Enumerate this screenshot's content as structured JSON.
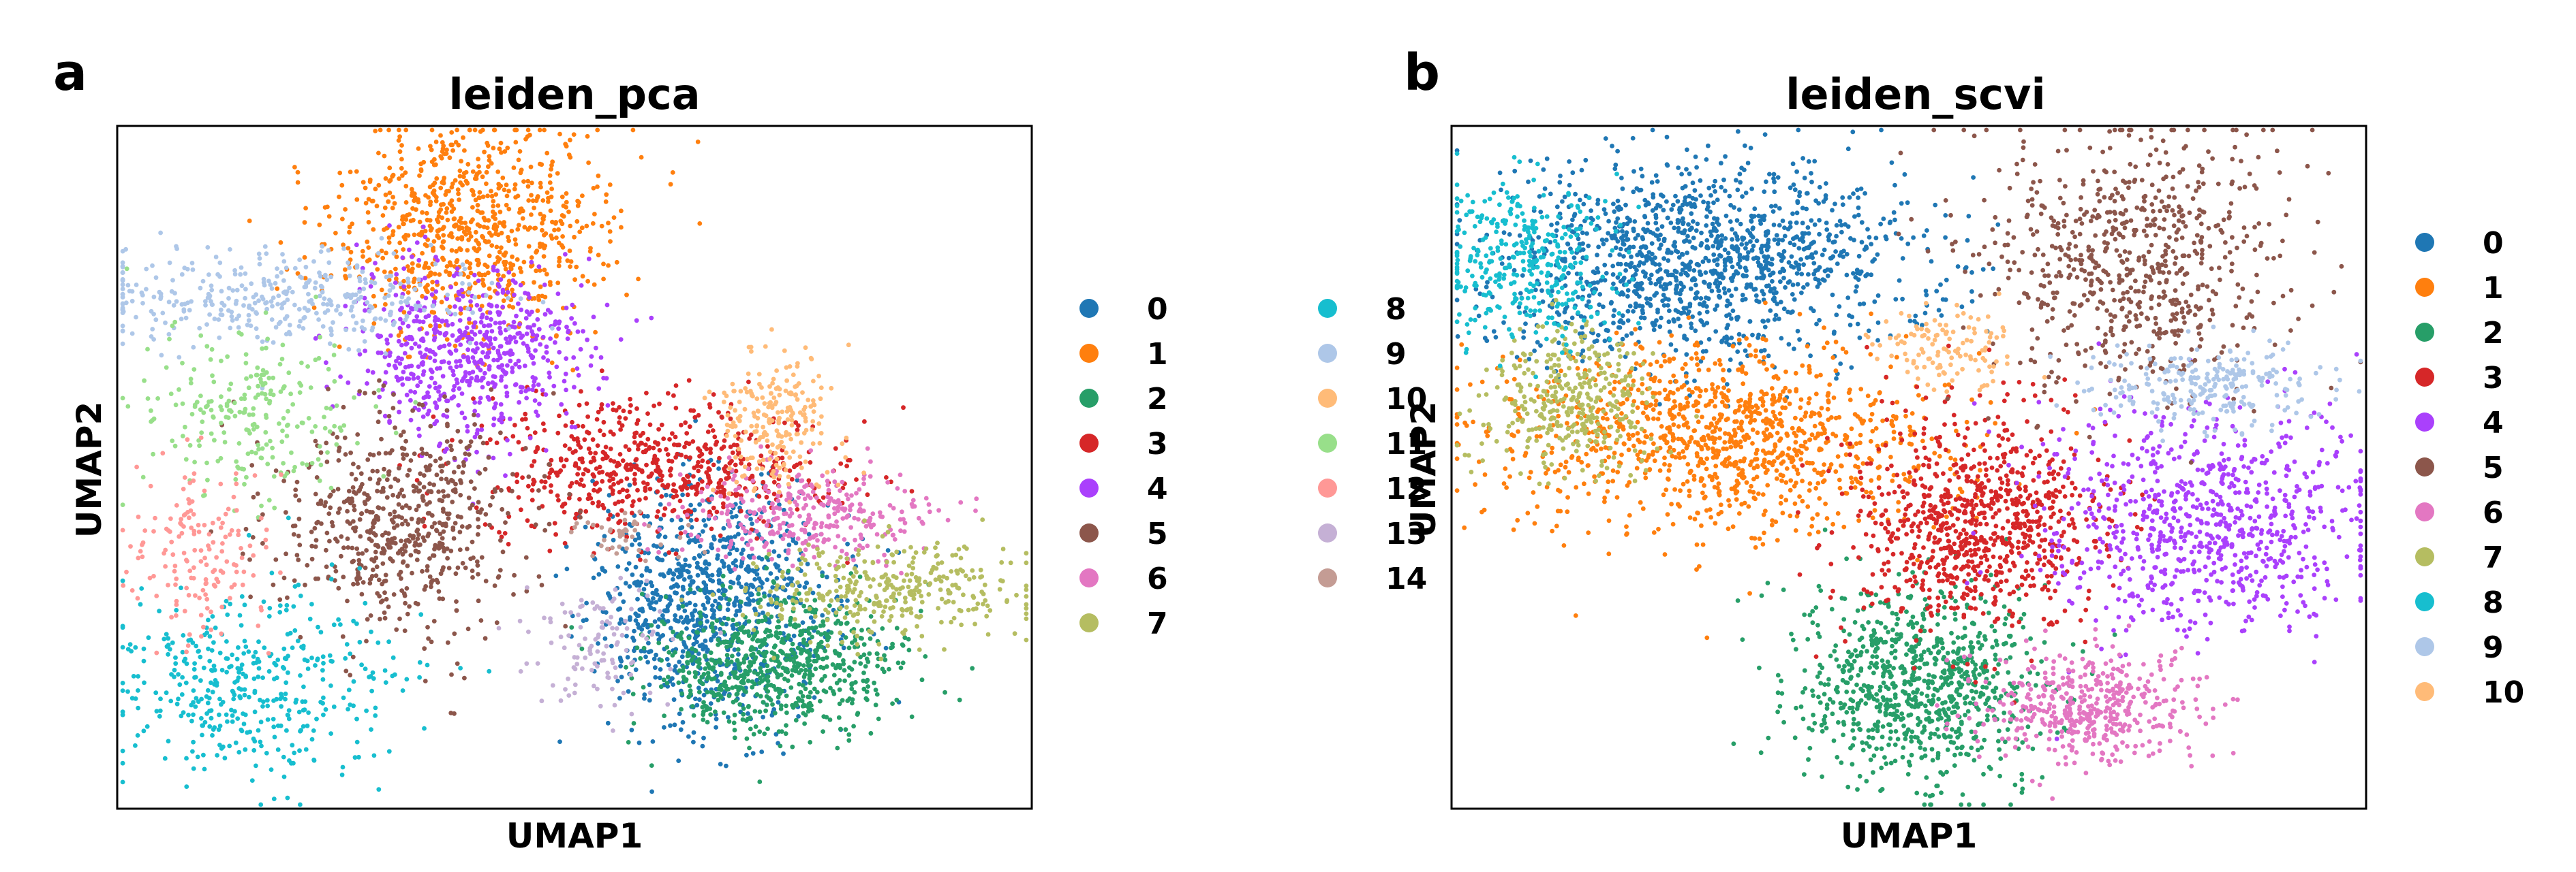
{
  "chart_data": [
    {
      "type": "scatter",
      "panel_label": "a",
      "title": "leiden_pca",
      "xlabel": "UMAP1",
      "ylabel": "UMAP2",
      "xlim": [
        0,
        100
      ],
      "ylim": [
        0,
        100
      ],
      "grid": false,
      "axis_ticks": false,
      "legend": {
        "placement": "right",
        "columns": 2,
        "entries": [
          {
            "label": "0",
            "color": "#1f77b4"
          },
          {
            "label": "1",
            "color": "#ff7f0e"
          },
          {
            "label": "2",
            "color": "#279e68"
          },
          {
            "label": "3",
            "color": "#d62728"
          },
          {
            "label": "4",
            "color": "#aa40fc"
          },
          {
            "label": "5",
            "color": "#8c564b"
          },
          {
            "label": "6",
            "color": "#e377c2"
          },
          {
            "label": "7",
            "color": "#b5bd61"
          },
          {
            "label": "8",
            "color": "#17becf"
          },
          {
            "label": "9",
            "color": "#aec7e8"
          },
          {
            "label": "10",
            "color": "#ffbb78"
          },
          {
            "label": "11",
            "color": "#98df8a"
          },
          {
            "label": "12",
            "color": "#ff9896"
          },
          {
            "label": "13",
            "color": "#c5b0d5"
          },
          {
            "label": "14",
            "color": "#c49c94"
          }
        ]
      },
      "clusters": [
        {
          "label": "0",
          "center": [
            65,
            30
          ],
          "spread": [
            6.5,
            9
          ],
          "count": 900
        },
        {
          "label": "1",
          "center": [
            38,
            85
          ],
          "spread": [
            7.5,
            7.5
          ],
          "count": 800
        },
        {
          "label": "2",
          "center": [
            72,
            21
          ],
          "spread": [
            7,
            5
          ],
          "count": 700
        },
        {
          "label": "3",
          "center": [
            58,
            50
          ],
          "spread": [
            9.5,
            5
          ],
          "count": 620
        },
        {
          "label": "4",
          "center": [
            38,
            67
          ],
          "spread": [
            6.5,
            6.5
          ],
          "count": 620
        },
        {
          "label": "5",
          "center": [
            31,
            42
          ],
          "spread": [
            7,
            8
          ],
          "count": 620
        },
        {
          "label": "6",
          "center": [
            76,
            43
          ],
          "spread": [
            7,
            3.5
          ],
          "count": 320
        },
        {
          "label": "7",
          "center": [
            85,
            32
          ],
          "spread": [
            8,
            3.5
          ],
          "count": 340
        },
        {
          "label": "8",
          "center": [
            15,
            18
          ],
          "spread": [
            8,
            7
          ],
          "count": 420
        },
        {
          "label": "9",
          "center": [
            18,
            75
          ],
          "spread": [
            11,
            3.5
          ],
          "count": 380
        },
        {
          "label": "10",
          "center": [
            72,
            57
          ],
          "spread": [
            3,
            5
          ],
          "count": 220
        },
        {
          "label": "11",
          "center": [
            15,
            58
          ],
          "spread": [
            6,
            6
          ],
          "count": 240
        },
        {
          "label": "12",
          "center": [
            9,
            38
          ],
          "spread": [
            4,
            7
          ],
          "count": 160
        },
        {
          "label": "13",
          "center": [
            53,
            24
          ],
          "spread": [
            4,
            6
          ],
          "count": 110
        },
        {
          "label": "14",
          "center": [
            55,
            40
          ],
          "spread": [
            3,
            2
          ],
          "count": 40
        }
      ]
    },
    {
      "type": "scatter",
      "panel_label": "b",
      "title": "leiden_scvi",
      "xlabel": "UMAP1",
      "ylabel": "UMAP2",
      "xlim": [
        0,
        100
      ],
      "ylim": [
        0,
        100
      ],
      "grid": false,
      "axis_ticks": false,
      "legend": {
        "placement": "right",
        "columns": 1,
        "entries": [
          {
            "label": "0",
            "color": "#1f77b4"
          },
          {
            "label": "1",
            "color": "#ff7f0e"
          },
          {
            "label": "2",
            "color": "#279e68"
          },
          {
            "label": "3",
            "color": "#d62728"
          },
          {
            "label": "4",
            "color": "#aa40fc"
          },
          {
            "label": "5",
            "color": "#8c564b"
          },
          {
            "label": "6",
            "color": "#e377c2"
          },
          {
            "label": "7",
            "color": "#b5bd61"
          },
          {
            "label": "8",
            "color": "#17becf"
          },
          {
            "label": "9",
            "color": "#aec7e8"
          },
          {
            "label": "10",
            "color": "#ffbb78"
          }
        ]
      },
      "clusters": [
        {
          "label": "0",
          "center": [
            27,
            80
          ],
          "spread": [
            11,
            7
          ],
          "count": 1300
        },
        {
          "label": "1",
          "center": [
            30,
            54
          ],
          "spread": [
            12,
            7
          ],
          "count": 1100
        },
        {
          "label": "2",
          "center": [
            51,
            18
          ],
          "spread": [
            7,
            7
          ],
          "count": 850
        },
        {
          "label": "3",
          "center": [
            58,
            42
          ],
          "spread": [
            7,
            8
          ],
          "count": 850
        },
        {
          "label": "4",
          "center": [
            82,
            42
          ],
          "spread": [
            9,
            8
          ],
          "count": 800
        },
        {
          "label": "5",
          "center": [
            75,
            80
          ],
          "spread": [
            8,
            10
          ],
          "count": 700
        },
        {
          "label": "6",
          "center": [
            70,
            15
          ],
          "spread": [
            6,
            4
          ],
          "count": 450
        },
        {
          "label": "7",
          "center": [
            13,
            60
          ],
          "spread": [
            4.5,
            5
          ],
          "count": 350
        },
        {
          "label": "8",
          "center": [
            8,
            80
          ],
          "spread": [
            5,
            6
          ],
          "count": 350
        },
        {
          "label": "9",
          "center": [
            83,
            62
          ],
          "spread": [
            6,
            3
          ],
          "count": 250
        },
        {
          "label": "10",
          "center": [
            54,
            68
          ],
          "spread": [
            3.5,
            3
          ],
          "count": 120
        }
      ]
    }
  ]
}
